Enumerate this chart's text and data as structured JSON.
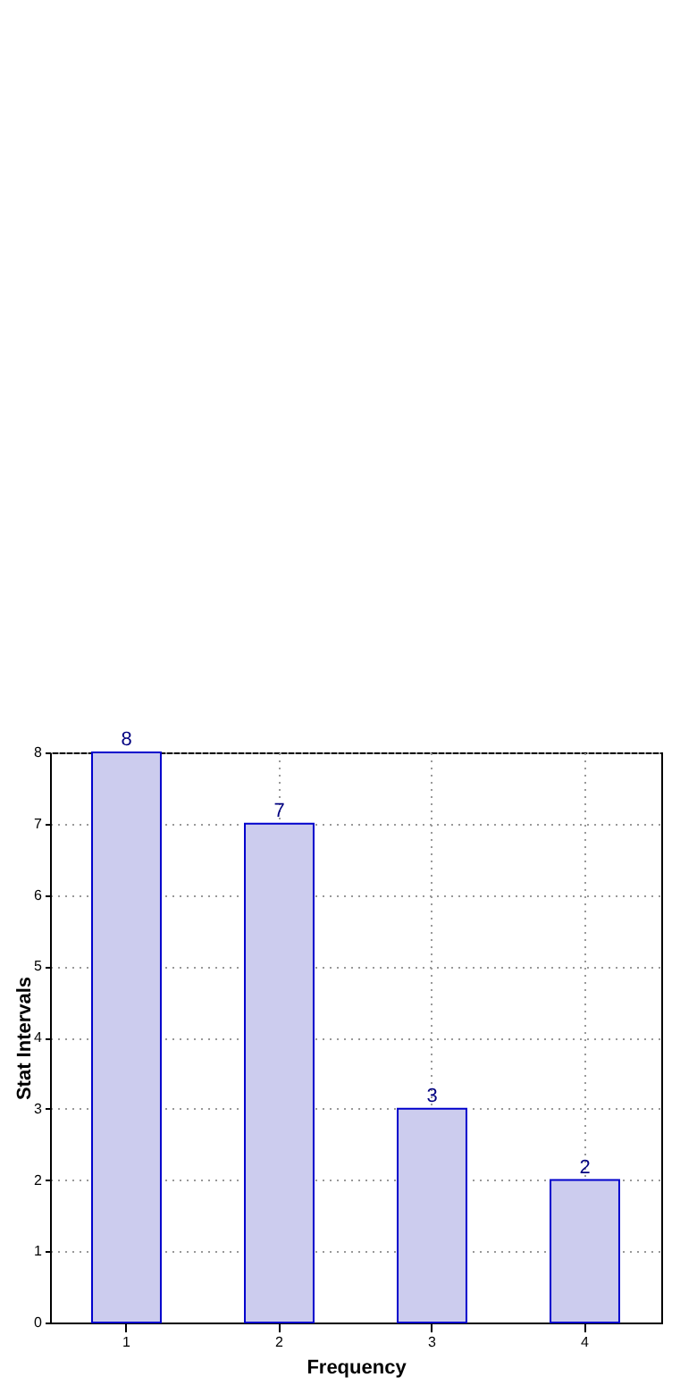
{
  "chart_data": {
    "type": "bar",
    "xlabel": "Frequency",
    "ylabel": "Stat Intervals",
    "categories": [
      "1",
      "2",
      "3",
      "4"
    ],
    "values": [
      8,
      7,
      3,
      2
    ],
    "color": "#ccccee",
    "ylim": [
      0,
      8
    ],
    "yticks": [
      0,
      1,
      2,
      3,
      4,
      5,
      6,
      7,
      8
    ],
    "grid": true,
    "data_labels": true
  }
}
